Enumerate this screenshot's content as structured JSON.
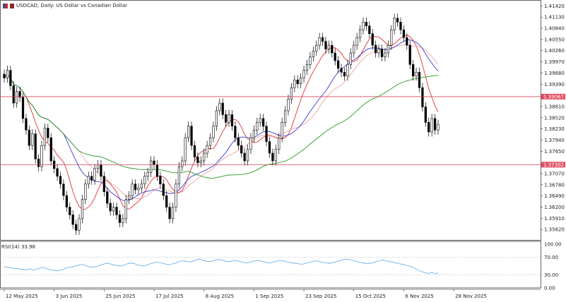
{
  "header": {
    "title": "USDCAD, Daily:  US Dollar vs Canadian Dollar"
  },
  "rsi_panel": {
    "label": "RSI(14) 33.98",
    "levels": [
      100.0,
      70.0,
      30.0,
      0.0
    ],
    "level_labels": [
      "100.00",
      "70.00",
      "30.00",
      "0.00"
    ],
    "line_color": "#5ba4e6"
  },
  "colors": {
    "candle": "#000000",
    "ma_fast": "#e63030",
    "ma_slow_light": "#f2a3a3",
    "ma_mid": "#3a3ad0",
    "ma_long": "#2a9a2a",
    "hline": "#d4455a",
    "hline_label_bg": "#e05061",
    "grid": "#d8d8d8"
  },
  "chart_data": {
    "type": "candlestick",
    "symbol": "USDCAD",
    "timeframe": "Daily",
    "ylim": [
      1.3535,
      1.415
    ],
    "y_ticks": [
      "1.41420",
      "1.41130",
      "1.40840",
      "1.40550",
      "1.40260",
      "1.39970",
      "1.39680",
      "1.39390",
      "1.38810",
      "1.38520",
      "1.38230",
      "1.37940",
      "1.37650",
      "1.37070",
      "1.36780",
      "1.36490",
      "1.36200",
      "1.35910",
      "1.35620"
    ],
    "x_tick_labels": [
      "12 May 2025",
      "3 Jun 2025",
      "25 Jun 2025",
      "17 Jul 2025",
      "8 Aug 2025",
      "1 Sep 2025",
      "23 Sep 2025",
      "15 Oct 2025",
      "6 Nov 2025",
      "28 Nov 2025"
    ],
    "x_tick_index": [
      0,
      16,
      32,
      48,
      64,
      80,
      96,
      112,
      128,
      144
    ],
    "horizontal_levels": [
      {
        "value": 1.39067,
        "label": "1.39067"
      },
      {
        "value": 1.37302,
        "label": "1.37302"
      }
    ],
    "closes": [
      1.3955,
      1.3975,
      1.3935,
      1.389,
      1.392,
      1.3905,
      1.385,
      1.382,
      1.378,
      1.381,
      1.3745,
      1.3725,
      1.378,
      1.3825,
      1.38,
      1.374,
      1.372,
      1.37,
      1.368,
      1.365,
      1.362,
      1.36,
      1.3575,
      1.356,
      1.359,
      1.364,
      1.368,
      1.37,
      1.369,
      1.372,
      1.373,
      1.37,
      1.366,
      1.363,
      1.361,
      1.362,
      1.36,
      1.358,
      1.359,
      1.364,
      1.365,
      1.368,
      1.3665,
      1.367,
      1.368,
      1.37,
      1.371,
      1.374,
      1.373,
      1.37,
      1.368,
      1.365,
      1.362,
      1.359,
      1.362,
      1.368,
      1.3725,
      1.374,
      1.38,
      1.383,
      1.378,
      1.375,
      1.3735,
      1.374,
      1.376,
      1.378,
      1.38,
      1.383,
      1.387,
      1.389,
      1.386,
      1.384,
      1.386,
      1.383,
      1.38,
      1.378,
      1.376,
      1.374,
      1.377,
      1.38,
      1.382,
      1.384,
      1.385,
      1.383,
      1.379,
      1.376,
      1.374,
      1.377,
      1.38,
      1.384,
      1.387,
      1.39,
      1.393,
      1.395,
      1.394,
      1.3955,
      1.3975,
      1.399,
      1.401,
      1.4025,
      1.404,
      1.406,
      1.405,
      1.403,
      1.404,
      1.402,
      1.4,
      1.398,
      1.397,
      1.396,
      1.399,
      1.402,
      1.404,
      1.406,
      1.408,
      1.41,
      1.409,
      1.407,
      1.404,
      1.402,
      1.403,
      1.401,
      1.402,
      1.404,
      1.408,
      1.411,
      1.41,
      1.408,
      1.406,
      1.404,
      1.399,
      1.396,
      1.397,
      1.393,
      1.388,
      1.384,
      1.3815,
      1.385,
      1.382,
      1.3835
    ],
    "ma_fast": [],
    "rsi_values": [
      48,
      47,
      46,
      45,
      44,
      43,
      42,
      41,
      44,
      40,
      43,
      45,
      47,
      44,
      42,
      41,
      39,
      40,
      42,
      45,
      47,
      48,
      50,
      52,
      54,
      51,
      49,
      47,
      48,
      50,
      53,
      55,
      57,
      54,
      52,
      51,
      50,
      52,
      55,
      57,
      56,
      53,
      51,
      50,
      52,
      55,
      57,
      59,
      58,
      56,
      54,
      53,
      55,
      57,
      60,
      62,
      61,
      59,
      60,
      63,
      66,
      64,
      62,
      60,
      61,
      63,
      65,
      64,
      62,
      60,
      61,
      63,
      62,
      60,
      58,
      57,
      59,
      61,
      63,
      62,
      60,
      58,
      57,
      59,
      61,
      63,
      62,
      60,
      58,
      57,
      56,
      55,
      54,
      56,
      58,
      60,
      62,
      61,
      59,
      58,
      56,
      57,
      59,
      61,
      63,
      65,
      66,
      64,
      62,
      60,
      58,
      57,
      55,
      56,
      58,
      60,
      62,
      64,
      62,
      60,
      59,
      57,
      55,
      54,
      52,
      50,
      48,
      44,
      40,
      37,
      35,
      33,
      35,
      33,
      34
    ]
  }
}
